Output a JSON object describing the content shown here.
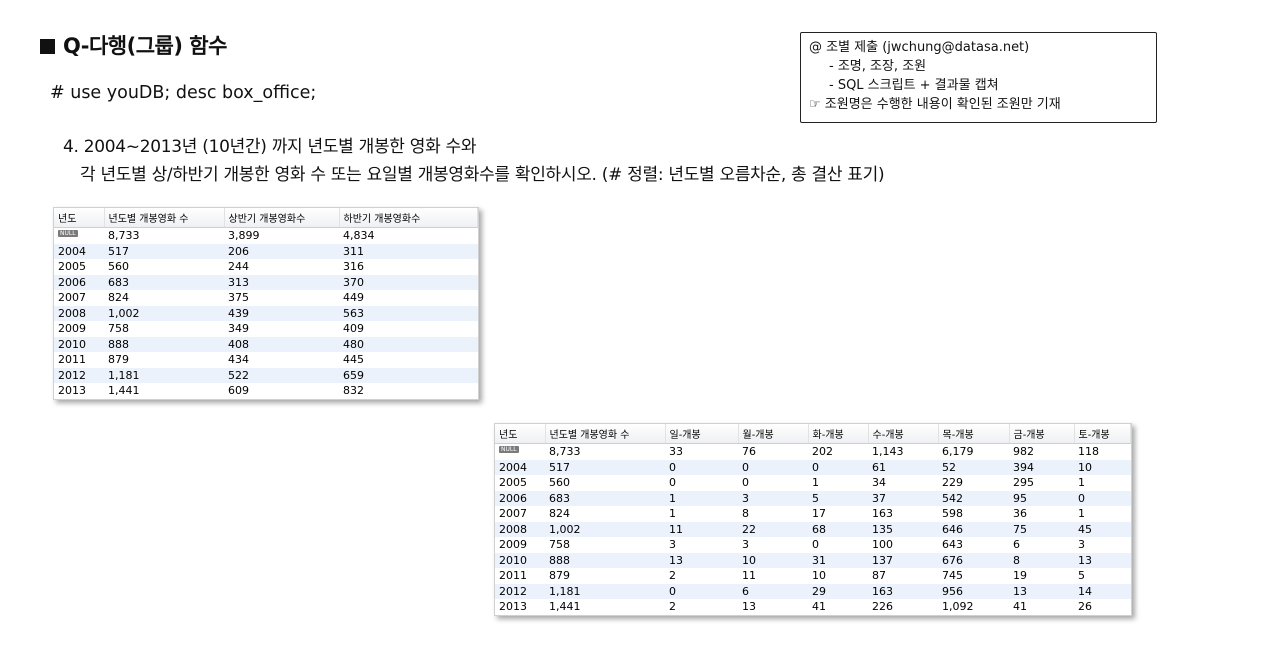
{
  "title": "Q-다행(그룹) 함수",
  "command": "# use youDB; desc box_office;",
  "question_line1": "4. 2004~2013년 (10년간) 까지 년도별 개봉한 영화 수와",
  "question_line2": "각 년도별 상/하반기 개봉한 영화 수 또는 요일별 개봉영화수를 확인하시오. (# 정렬: 년도별 오름차순, 총 결산 표기)",
  "note": {
    "line1": "@ 조별 제출 (jwchung@datasa.net)",
    "line2": "- 조명, 조장, 조원",
    "line3": "- SQL 스크립트 + 결과물 캡쳐",
    "line4": "☞ 조원명은 수행한 내용이 확인된 조원만 기재"
  },
  "null_label": "NULL",
  "table1": {
    "headers": [
      "년도",
      "년도별 개봉영화 수",
      "상반기 개봉영화수",
      "하반기 개봉영화수"
    ],
    "rows": [
      [
        "",
        "8,733",
        "3,899",
        "4,834"
      ],
      [
        "2004",
        "517",
        "206",
        "311"
      ],
      [
        "2005",
        "560",
        "244",
        "316"
      ],
      [
        "2006",
        "683",
        "313",
        "370"
      ],
      [
        "2007",
        "824",
        "375",
        "449"
      ],
      [
        "2008",
        "1,002",
        "439",
        "563"
      ],
      [
        "2009",
        "758",
        "349",
        "409"
      ],
      [
        "2010",
        "888",
        "408",
        "480"
      ],
      [
        "2011",
        "879",
        "434",
        "445"
      ],
      [
        "2012",
        "1,181",
        "522",
        "659"
      ],
      [
        "2013",
        "1,441",
        "609",
        "832"
      ]
    ]
  },
  "table2": {
    "headers": [
      "년도",
      "년도별 개봉영화 수",
      "일-개봉",
      "월-개봉",
      "화-개봉",
      "수-개봉",
      "목-개봉",
      "금-개봉",
      "토-개봉"
    ],
    "rows": [
      [
        "",
        "8,733",
        "33",
        "76",
        "202",
        "1,143",
        "6,179",
        "982",
        "118"
      ],
      [
        "2004",
        "517",
        "0",
        "0",
        "0",
        "61",
        "52",
        "394",
        "10"
      ],
      [
        "2005",
        "560",
        "0",
        "0",
        "1",
        "34",
        "229",
        "295",
        "1"
      ],
      [
        "2006",
        "683",
        "1",
        "3",
        "5",
        "37",
        "542",
        "95",
        "0"
      ],
      [
        "2007",
        "824",
        "1",
        "8",
        "17",
        "163",
        "598",
        "36",
        "1"
      ],
      [
        "2008",
        "1,002",
        "11",
        "22",
        "68",
        "135",
        "646",
        "75",
        "45"
      ],
      [
        "2009",
        "758",
        "3",
        "3",
        "0",
        "100",
        "643",
        "6",
        "3"
      ],
      [
        "2010",
        "888",
        "13",
        "10",
        "31",
        "137",
        "676",
        "8",
        "13"
      ],
      [
        "2011",
        "879",
        "2",
        "11",
        "10",
        "87",
        "745",
        "19",
        "5"
      ],
      [
        "2012",
        "1,181",
        "0",
        "6",
        "29",
        "163",
        "956",
        "13",
        "14"
      ],
      [
        "2013",
        "1,441",
        "2",
        "13",
        "41",
        "226",
        "1,092",
        "41",
        "26"
      ]
    ]
  }
}
